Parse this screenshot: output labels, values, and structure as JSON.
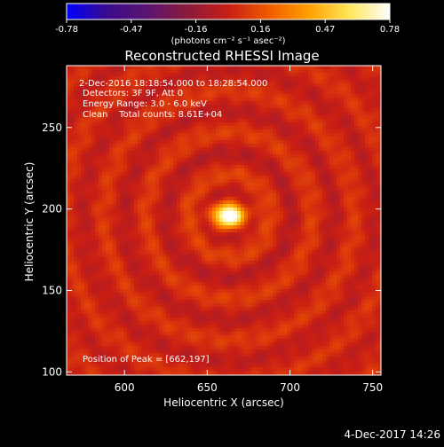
{
  "colors": {
    "background": "#000000",
    "foreground": "#ffffff",
    "colormap": [
      "#0000ff",
      "#3a0a8c",
      "#5a1470",
      "#8c1a3c",
      "#c81e14",
      "#f05a00",
      "#ffa000",
      "#ffe65a",
      "#ffffff"
    ]
  },
  "colorbar": {
    "tick_labels": [
      "-0.78",
      "-0.47",
      "-0.16",
      "0.16",
      "0.47",
      "0.78"
    ],
    "range": [
      -0.78,
      0.78
    ],
    "unit_label": "(photons cm⁻² s⁻¹ asec⁻²)"
  },
  "chart_data": {
    "type": "heatmap",
    "title": "Reconstructed RHESSI Image",
    "xlabel": "Heliocentric X (arcsec)",
    "ylabel": "Heliocentric Y (arcsec)",
    "xlim": [
      565,
      755
    ],
    "ylim": [
      98,
      288
    ],
    "x_ticks": [
      600,
      650,
      700,
      750
    ],
    "y_ticks": [
      100,
      150,
      200,
      250
    ],
    "annotations": [
      "2-Dec-2016 18:18:54.000 to 18:28:54.000",
      "Detectors: 3F 9F, Att 0",
      "Energy Range: 3.0 - 6.0 keV",
      "Clean    Total counts: 8.61E+04"
    ],
    "peak_label": "Position of Peak = [662,197]",
    "peak": [
      662,
      197
    ],
    "peak_value": 0.78
  },
  "footer": {
    "timestamp": "4-Dec-2017 14:26"
  }
}
